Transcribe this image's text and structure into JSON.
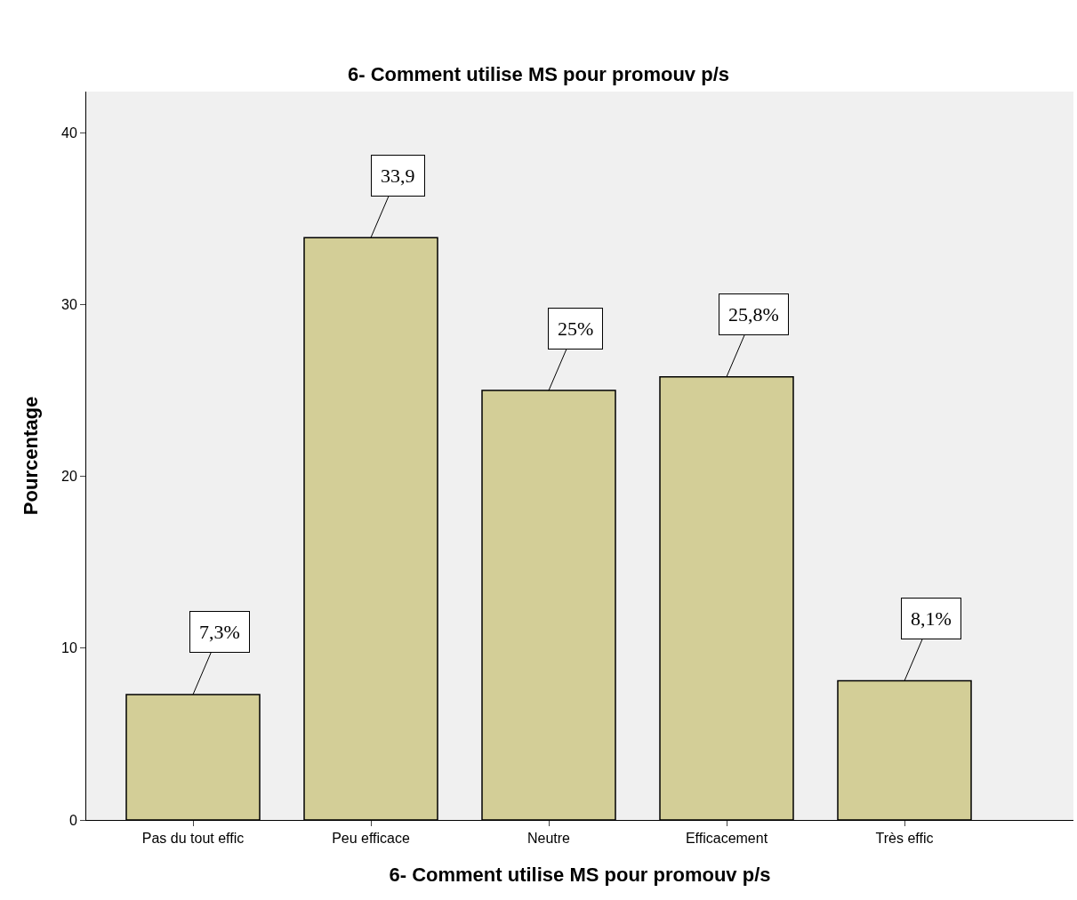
{
  "chart_data": {
    "type": "bar",
    "title": "6- Comment utilise MS pour promouv p/s",
    "xlabel": "6- Comment utilise MS pour promouv p/s",
    "ylabel": "Pourcentage",
    "categories": [
      "Pas du tout effic",
      "Peu efficace",
      "Neutre",
      "Efficacement",
      "Très effic"
    ],
    "values": [
      7.3,
      33.9,
      25,
      25.8,
      8.1
    ],
    "value_labels": [
      "7,3%",
      "33,9",
      "25%",
      "25,8%",
      "8,1%"
    ],
    "color": "#d3ce97",
    "ylim": [
      0,
      42.4
    ],
    "yticks": [
      0,
      10,
      20,
      30,
      40
    ],
    "grid": false
  }
}
